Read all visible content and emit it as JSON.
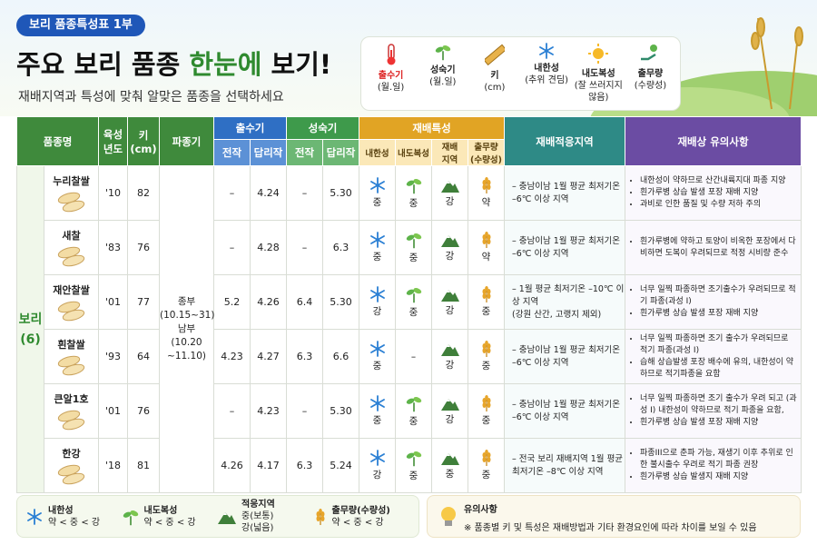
{
  "header": {
    "badge": "보리 품종특성표 1부",
    "title": [
      "주요 보리 품종",
      "한눈에",
      "보기!"
    ],
    "subtitle": "재배지역과 특성에 맞춰 알맞은 품종을 선택하세요"
  },
  "icon_legend": [
    {
      "label": "출수기",
      "note": "(월.일)"
    },
    {
      "label": "성숙기",
      "note": "(월.일)"
    },
    {
      "label": "키",
      "note": "(cm)"
    },
    {
      "label": "내한성",
      "note": "(추위 견딤)"
    },
    {
      "label": "내도복성",
      "note": "(잘 쓰러지지 않음)"
    },
    {
      "label": "출무량",
      "note": "(수량성)"
    }
  ],
  "table": {
    "headers": {
      "name": "품종명",
      "year": "육성\n년도",
      "height": "키\n(cm)",
      "sowing": "파종기",
      "heading": "출수기",
      "maturity": "성숙기",
      "sub": [
        "전작",
        "답리작"
      ],
      "traits": "재배특성",
      "trait_names": [
        "내한성",
        "내도복성",
        "재배\n지역",
        "출무량\n(수량성)"
      ],
      "region": "재배적응지역",
      "notes": "재배상 유의사항"
    },
    "group": {
      "name": "보리",
      "count": "(6)"
    },
    "sowing": "종부\n(10.15~31)\n남부\n(10.20\n~11.10)",
    "rows": [
      {
        "name": "누리찰쌀",
        "year": "'10",
        "height": 82,
        "heading": [
          "–",
          "4.24"
        ],
        "maturity": [
          "–",
          "5.30"
        ],
        "traits": [
          "중",
          "중",
          "강",
          "약"
        ],
        "region": "– 충남이남 1월 평균 최저기온\n–6℃ 이상 지역",
        "notes": [
          "내한성이 약하므로 산간내륙지대 파종 지양",
          "흰가루병 상습 발생 포장 재배 지양",
          "과비로 인한 품질 및 수량 저하 주의"
        ]
      },
      {
        "name": "새찰",
        "year": "'83",
        "height": 76,
        "heading": [
          "–",
          "4.28"
        ],
        "maturity": [
          "–",
          "6.3"
        ],
        "traits": [
          "중",
          "중",
          "강",
          "약"
        ],
        "region": "– 충남이남 1월 평균 최저기온\n–6℃ 이상 지역",
        "notes": [
          "흰가루병에 약하고 토양이 비옥한 포장에서 다비하면 도복이 우려되므로 적정 시비량 준수"
        ]
      },
      {
        "name": "재안찰쌀",
        "year": "'01",
        "height": 77,
        "heading": [
          "5.2",
          "4.26"
        ],
        "maturity": [
          "6.4",
          "5.30"
        ],
        "traits": [
          "강",
          "중",
          "강",
          "중"
        ],
        "region": "– 1월 평균 최저기온 –10℃ 이상 지역\n(강원 산간, 고랭지 제외)",
        "notes": [
          "너무 일찍 파종하면 조기출수가 우려되므로 적기 파종(과성 I)",
          "흰가루병 상습 발생 포장 재배 지양"
        ]
      },
      {
        "name": "흰찰쌀",
        "year": "'93",
        "height": 64,
        "heading": [
          "4.23",
          "4.27"
        ],
        "maturity": [
          "6.3",
          "6.6"
        ],
        "traits": [
          "중",
          "–",
          "강",
          "중"
        ],
        "region": "– 충남이남 1월 평균 최저기온\n–6℃ 이상 지역",
        "notes": [
          "너무 일찍 파종하면 조기 출수가 우려되므로 적기 파종(과성 I)",
          "습해 상습발생 포장 배수에 유의, 내한성이 약하므로 적기파종을 요함"
        ]
      },
      {
        "name": "큰알1호",
        "year": "'01",
        "height": 76,
        "heading": [
          "–",
          "4.23"
        ],
        "maturity": [
          "–",
          "5.30"
        ],
        "traits": [
          "중",
          "중",
          "강",
          "중"
        ],
        "region": "– 충남이남 1월 평균 최저기온\n–6℃ 이상 지역",
        "notes": [
          "너무 일찍 파종하면 조기 출수가 우려 되고 (과성 I) 내한성이 약하므로 적기 파종을 요함,",
          "흰가루병 상습 발생 포장 재배 지양"
        ]
      },
      {
        "name": "한강",
        "year": "'18",
        "height": 81,
        "heading": [
          "4.26",
          "4.17"
        ],
        "maturity": [
          "6.3",
          "5.24"
        ],
        "traits": [
          "강",
          "중",
          "중",
          "중"
        ],
        "region": "– 전국 보리 재배지역 1월 평균\n최저기온 –8℃ 이상 지역",
        "notes": [
          "파종III으로 춘파 가능, 재생기 이후 추위로 인한 불시출수 우려로 적기 파종 권장",
          "흰가루병 상습 발생지 재배 지양"
        ]
      }
    ]
  },
  "footer_legend": [
    {
      "label": "내한성",
      "scale": "약 < 중 < 강"
    },
    {
      "label": "내도복성",
      "scale": "약 < 중 < 강"
    },
    {
      "label": "적응지역",
      "scale": "중(보통)\n강(넓음)"
    },
    {
      "label": "출무량(수량성)",
      "scale": "약 < 중 < 강"
    }
  ],
  "footer_note": {
    "title": "유의사항",
    "text": "※ 품종별 키 및 특성은 재배방법과 기타 환경요인에 따라 차이를 보일 수 있음"
  }
}
